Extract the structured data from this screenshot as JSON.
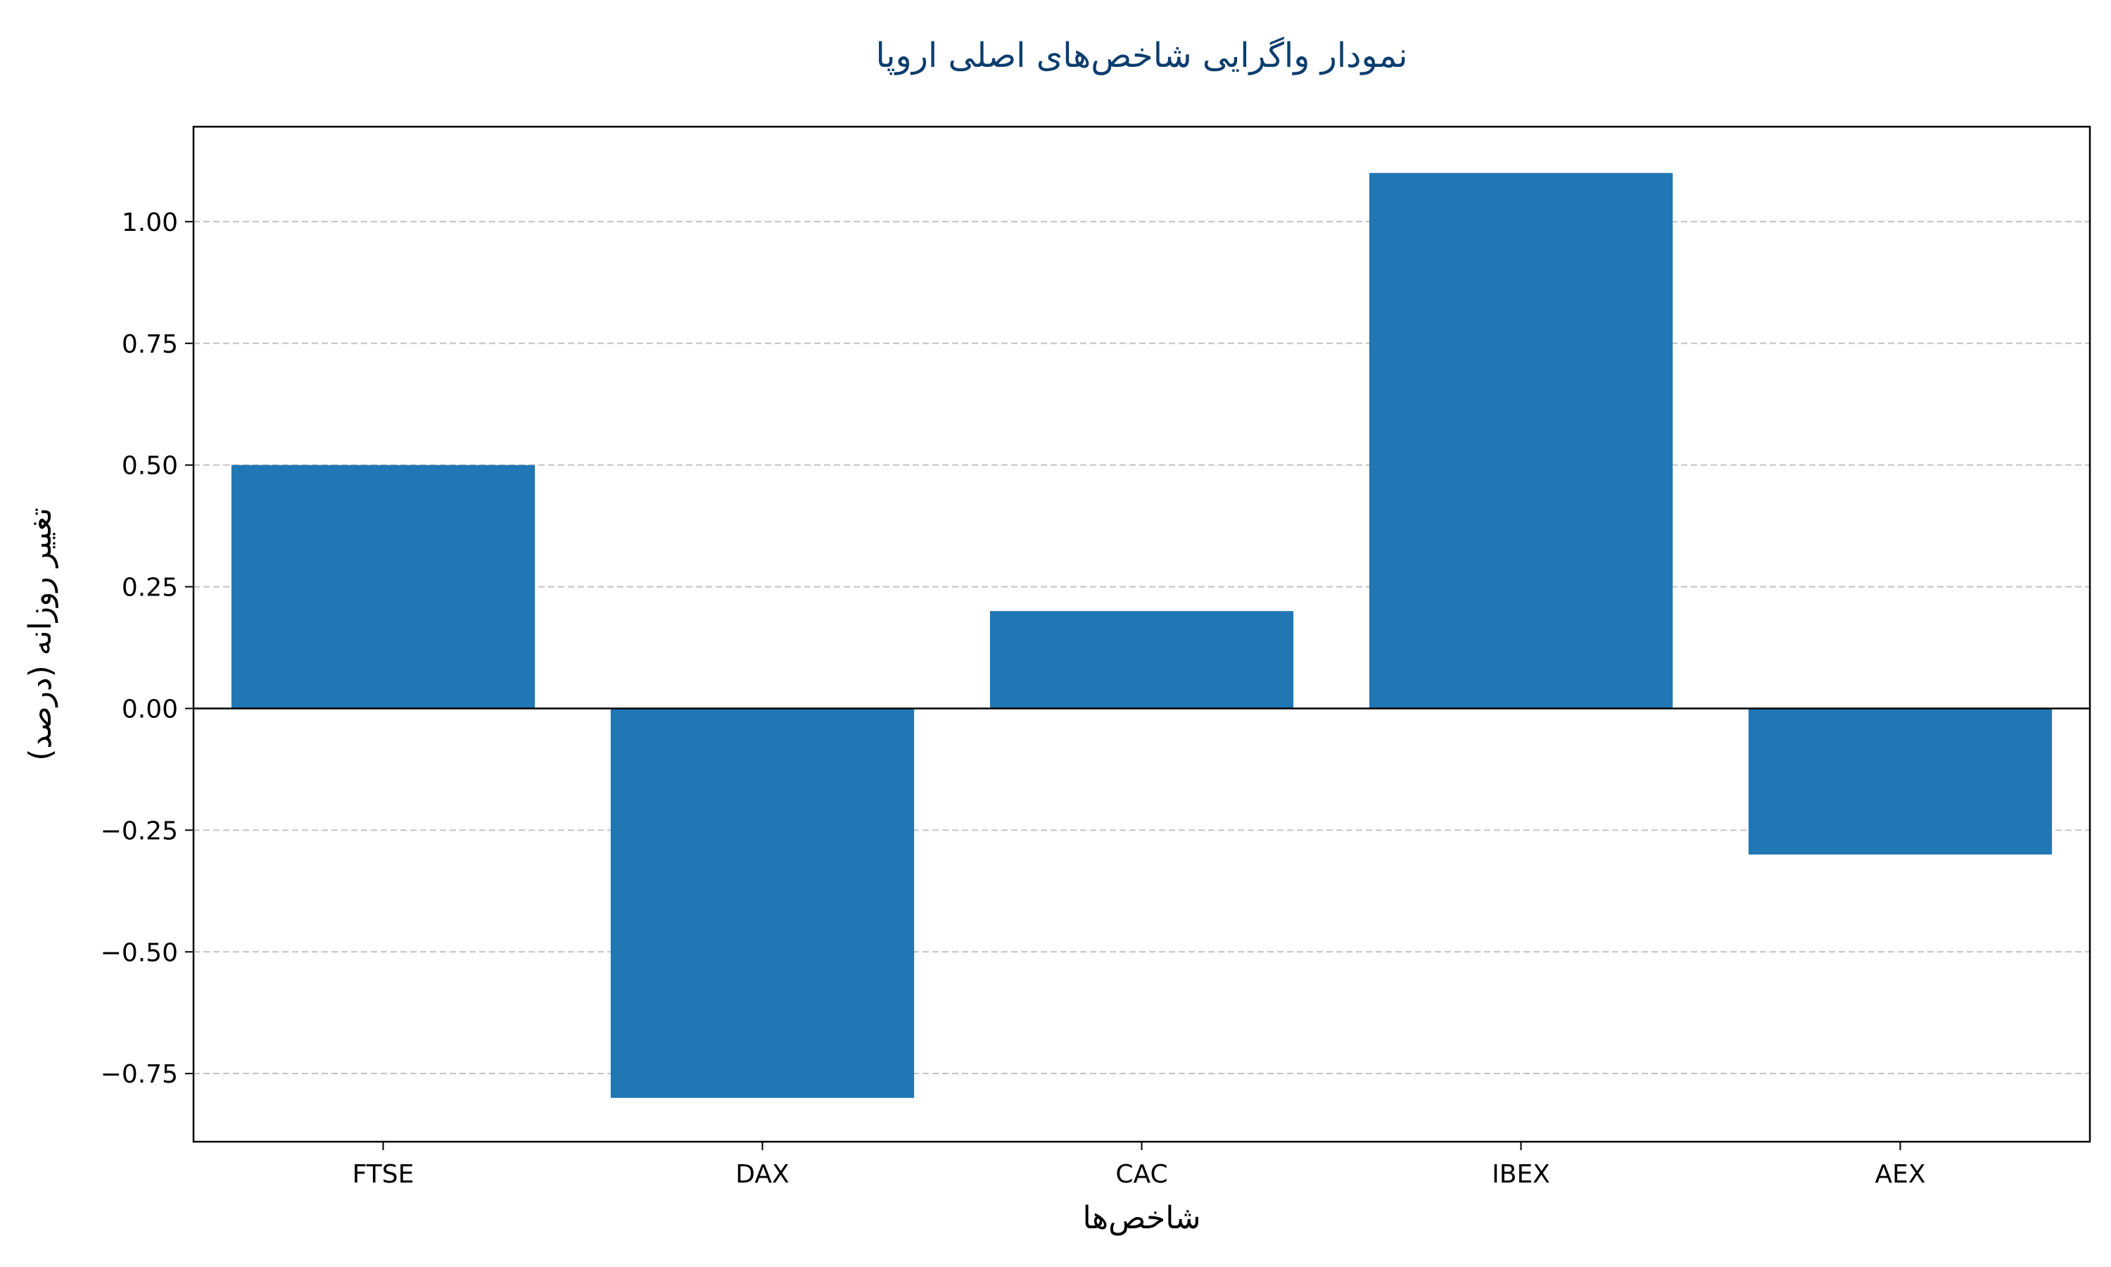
{
  "chart_data": {
    "type": "bar",
    "title": "نمودار واگرایی شاخص‌های اصلی اروپا",
    "xlabel": "شاخص‌ها",
    "ylabel": "تغییر روزانه (درصد)",
    "categories": [
      "FTSE",
      "DAX",
      "CAC",
      "IBEX",
      "AEX"
    ],
    "values": [
      0.5,
      -0.8,
      0.2,
      1.1,
      -0.3
    ],
    "ylim": [
      -0.89,
      1.195
    ],
    "yticks": [
      -0.75,
      -0.5,
      -0.25,
      0.0,
      0.25,
      0.5,
      0.75,
      1.0
    ],
    "ytick_labels": [
      "−0.75",
      "−0.50",
      "−0.25",
      "0.00",
      "0.25",
      "0.50",
      "0.75",
      "1.00"
    ],
    "grid": "y-dashed",
    "bar_color": "#2077b4",
    "title_color": "#0b3d6e",
    "zero_line": true
  }
}
